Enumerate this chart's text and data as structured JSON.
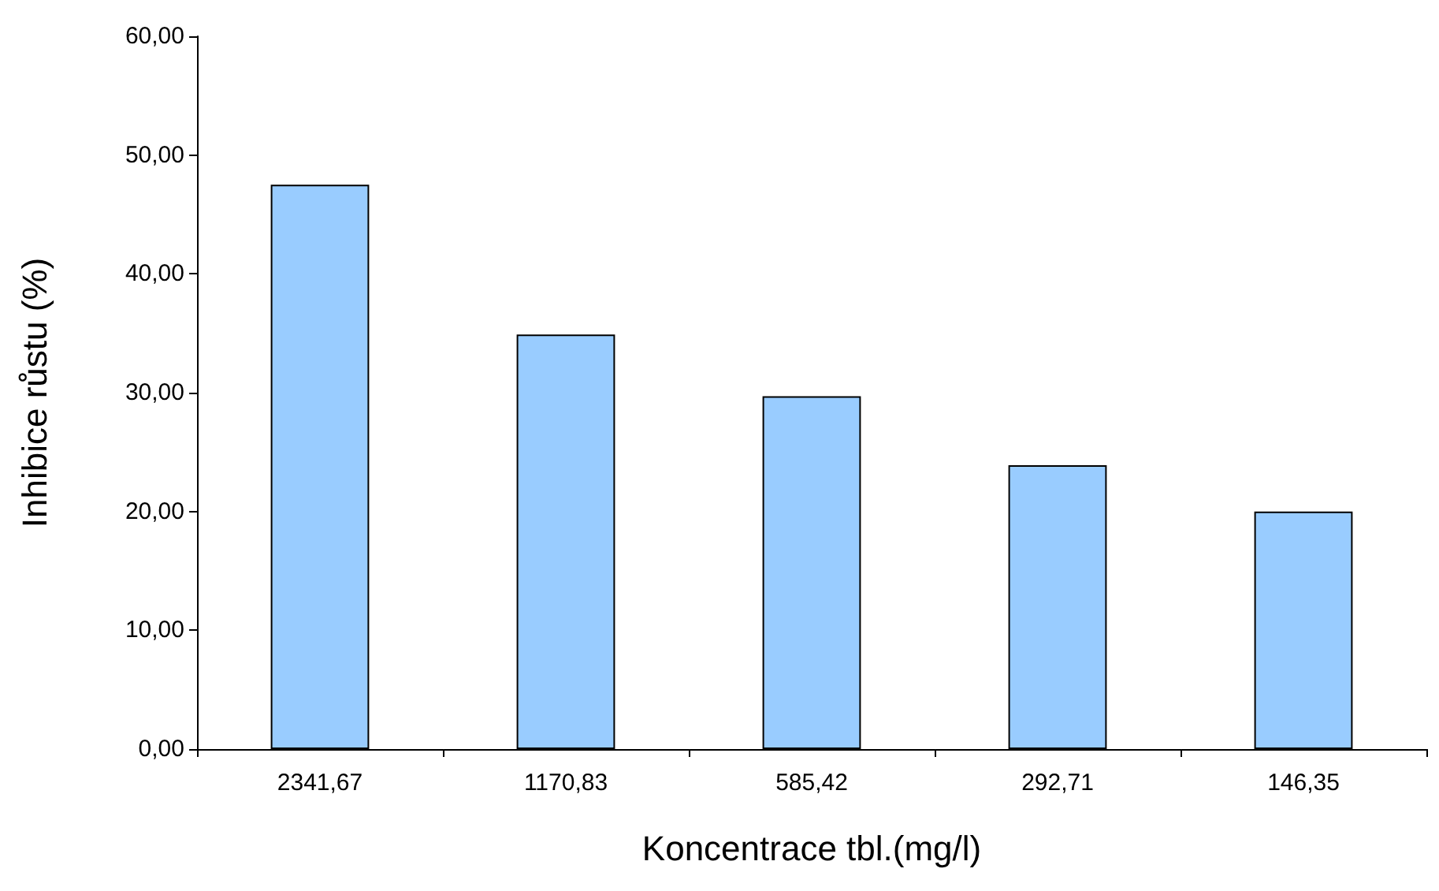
{
  "chart_data": {
    "type": "bar",
    "xlabel": "Koncentrace tbl.(mg/l)",
    "ylabel": "Inhibice růstu (%)",
    "categories": [
      "2341,67",
      "1170,83",
      "585,42",
      "292,71",
      "146,35"
    ],
    "values": [
      47.5,
      34.9,
      29.7,
      23.9,
      20.0
    ],
    "color": "#99ccff",
    "ylim": [
      0,
      60
    ],
    "yticks": [
      {
        "value": 0,
        "label": "0,00"
      },
      {
        "value": 10,
        "label": "10,00"
      },
      {
        "value": 20,
        "label": "20,00"
      },
      {
        "value": 30,
        "label": "30,00"
      },
      {
        "value": 40,
        "label": "40,00"
      },
      {
        "value": 50,
        "label": "50,00"
      },
      {
        "value": 60,
        "label": "60,00"
      }
    ],
    "grid": false
  }
}
